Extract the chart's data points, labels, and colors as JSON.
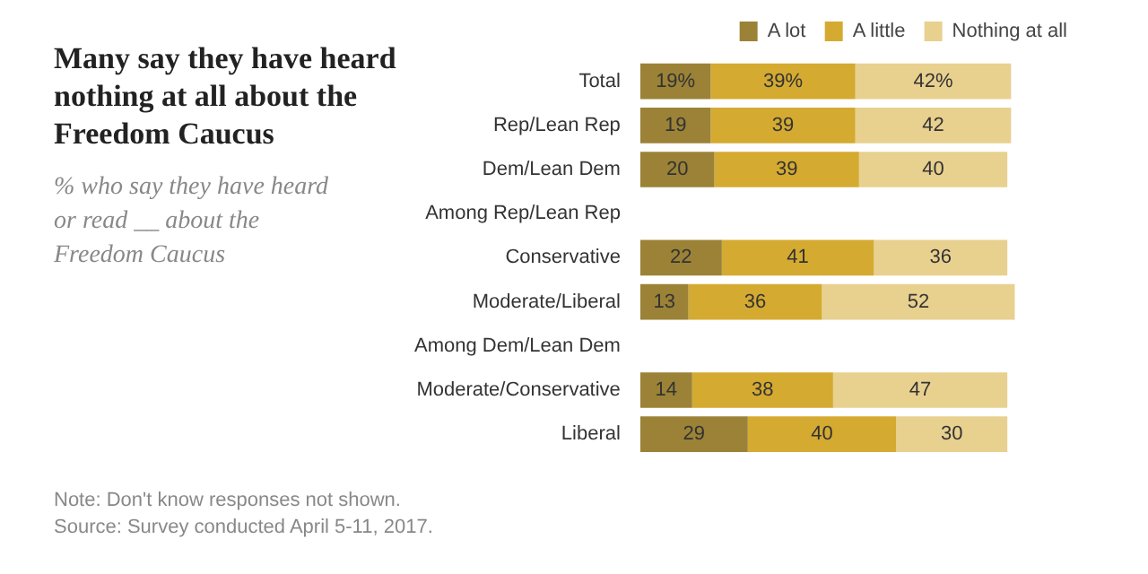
{
  "chart_data": {
    "type": "bar",
    "orientation": "horizontal",
    "stacked": true,
    "title": "Many say they have heard nothing at all about the Freedom Caucus",
    "subtitle": "% who say they have heard or read __ about the Freedom Caucus",
    "categories": [
      "Total",
      "Rep/Lean Rep",
      "Dem/Lean Dem",
      "Among Rep/Lean Rep",
      "Conservative",
      "Moderate/Liberal",
      "Among Dem/Lean Dem",
      "Moderate/Conservative",
      "Liberal"
    ],
    "series": [
      {
        "name": "A lot",
        "color": "#9b8236",
        "values": [
          19,
          19,
          20,
          null,
          22,
          13,
          null,
          14,
          29
        ],
        "value_labels": [
          "19%",
          "19",
          "20",
          null,
          "22",
          "13",
          null,
          "14",
          "29"
        ]
      },
      {
        "name": "A little",
        "color": "#d4aa31",
        "values": [
          39,
          39,
          39,
          null,
          41,
          36,
          null,
          38,
          40
        ],
        "value_labels": [
          "39%",
          "39",
          "39",
          null,
          "41",
          "36",
          null,
          "38",
          "40"
        ]
      },
      {
        "name": "Nothing at all",
        "color": "#e8d08f",
        "values": [
          42,
          42,
          40,
          null,
          36,
          52,
          null,
          47,
          30
        ],
        "value_labels": [
          "42%",
          "42",
          "40",
          null,
          "36",
          "52",
          null,
          "47",
          "30"
        ]
      }
    ],
    "legend": "top",
    "annotations": [
      "Note: Don't know responses not shown.",
      "Source: Survey conducted April 5-11, 2017."
    ]
  }
}
